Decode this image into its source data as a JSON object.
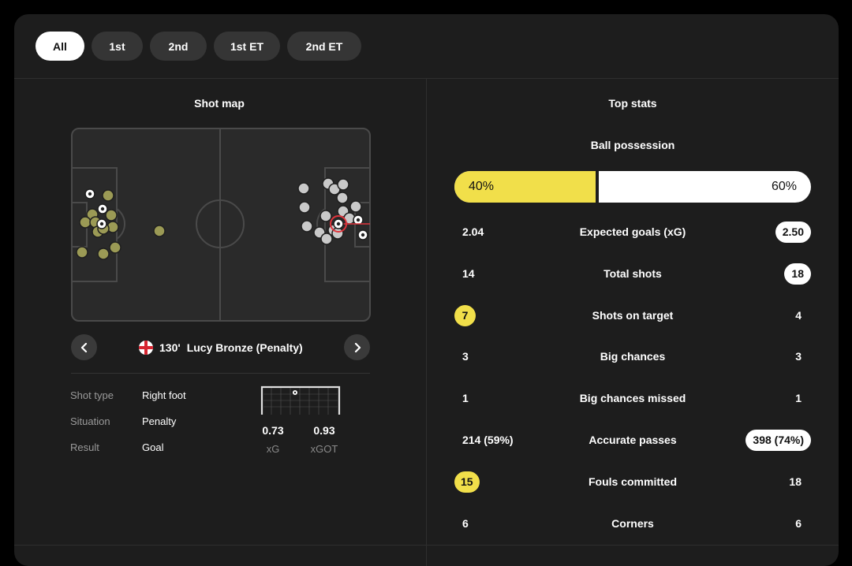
{
  "tabs": [
    {
      "label": "All",
      "active": true
    },
    {
      "label": "1st",
      "active": false
    },
    {
      "label": "2nd",
      "active": false
    },
    {
      "label": "1st ET",
      "active": false
    },
    {
      "label": "2nd ET",
      "active": false
    }
  ],
  "shot_map": {
    "title": "Shot map",
    "selected_shot": {
      "minute": "130'",
      "player": "Lucy Bronze (Penalty)",
      "flag_icon": "england-flag-icon"
    },
    "details": {
      "shot_type_label": "Shot type",
      "shot_type_value": "Right foot",
      "situation_label": "Situation",
      "situation_value": "Penalty",
      "result_label": "Result",
      "result_value": "Goal"
    },
    "xg": {
      "value": "0.73",
      "label": "xG"
    },
    "xgot": {
      "value": "0.93",
      "label": "xGOT"
    },
    "colors": {
      "home": "#9b9a55",
      "away": "#c9c9c9",
      "selected": "#e0343c"
    }
  },
  "top_stats": {
    "title": "Top stats",
    "possession": {
      "label": "Ball possession",
      "home": "40%",
      "away": "60%",
      "home_fraction": 0.4
    },
    "rows": [
      {
        "label": "Expected goals (xG)",
        "home": "2.04",
        "away": "2.50",
        "highlight": "away"
      },
      {
        "label": "Total shots",
        "home": "14",
        "away": "18",
        "highlight": "away"
      },
      {
        "label": "Shots on target",
        "home": "7",
        "away": "4",
        "highlight": "home"
      },
      {
        "label": "Big chances",
        "home": "3",
        "away": "3",
        "highlight": "none"
      },
      {
        "label": "Big chances missed",
        "home": "1",
        "away": "1",
        "highlight": "none"
      },
      {
        "label": "Accurate passes",
        "home": "214 (59%)",
        "away": "398 (74%)",
        "highlight": "away"
      },
      {
        "label": "Fouls committed",
        "home": "15",
        "away": "18",
        "highlight": "home"
      },
      {
        "label": "Corners",
        "home": "6",
        "away": "6",
        "highlight": "none"
      }
    ],
    "colors": {
      "accent": "#f1df4a",
      "pill": "#ffffff"
    }
  }
}
